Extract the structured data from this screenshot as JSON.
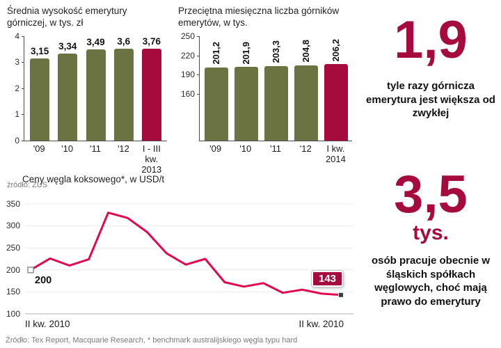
{
  "colors": {
    "accent": "#a60b3d",
    "olive": "#6c7342",
    "line": "#e5074e",
    "axis": "#4a4a4a"
  },
  "chart_data": [
    {
      "id": "pension_amount",
      "type": "bar",
      "title": "Średnia wysokość emerytury górniczej, w tys. zł",
      "source": "źródło: ZUS",
      "categories": [
        "'09",
        "'10",
        "'11",
        "'12",
        "I - III kw.\n2013"
      ],
      "values": [
        3.15,
        3.34,
        3.49,
        3.6,
        3.76
      ],
      "value_labels": [
        "3,15",
        "3,34",
        "3,49",
        "3,6",
        "3,76"
      ],
      "ylim": [
        0,
        4
      ],
      "yticks": [
        4,
        3,
        2,
        1,
        0
      ],
      "highlight_last": true
    },
    {
      "id": "pension_count",
      "type": "bar",
      "title": "Przeciętna miesięczna liczba górników emerytów, w tys.",
      "categories": [
        "'09",
        "'10",
        "'11",
        "'12",
        "I kw.\n2014"
      ],
      "values": [
        201.2,
        201.9,
        203.3,
        204.8,
        206.2
      ],
      "value_labels": [
        "201,2",
        "201,9",
        "203,3",
        "204,8",
        "206,2"
      ],
      "ylim": [
        160,
        250
      ],
      "yticks": [
        250,
        220,
        190,
        160
      ],
      "rotated_value_labels": true,
      "highlight_last": true
    },
    {
      "id": "coal_price",
      "type": "line",
      "title": "Ceny węgla koksowego*, w USD/t",
      "source": "Źródło: Tex Report, Macquarie Research, * benchmark australijskiego węgla typu hard",
      "x_axis_labels": [
        "II kw. 2010",
        "II kw. 2010"
      ],
      "values": [
        200,
        226,
        210,
        224,
        330,
        318,
        286,
        238,
        212,
        225,
        172,
        162,
        170,
        148,
        155,
        146,
        143
      ],
      "start_label": "200",
      "end_label": "143",
      "ylim": [
        100,
        350
      ],
      "yticks": [
        350,
        300,
        250,
        200,
        150,
        100
      ]
    }
  ],
  "stats": [
    {
      "number": "1,9",
      "caption": "tyle razy górnicza emerytura jest większa od zwykłej"
    },
    {
      "number": "3,5",
      "unit": "tys.",
      "caption": "osób pracuje obecnie w śląskich spółkach węglowych, choć mają prawo do emerytury"
    }
  ]
}
